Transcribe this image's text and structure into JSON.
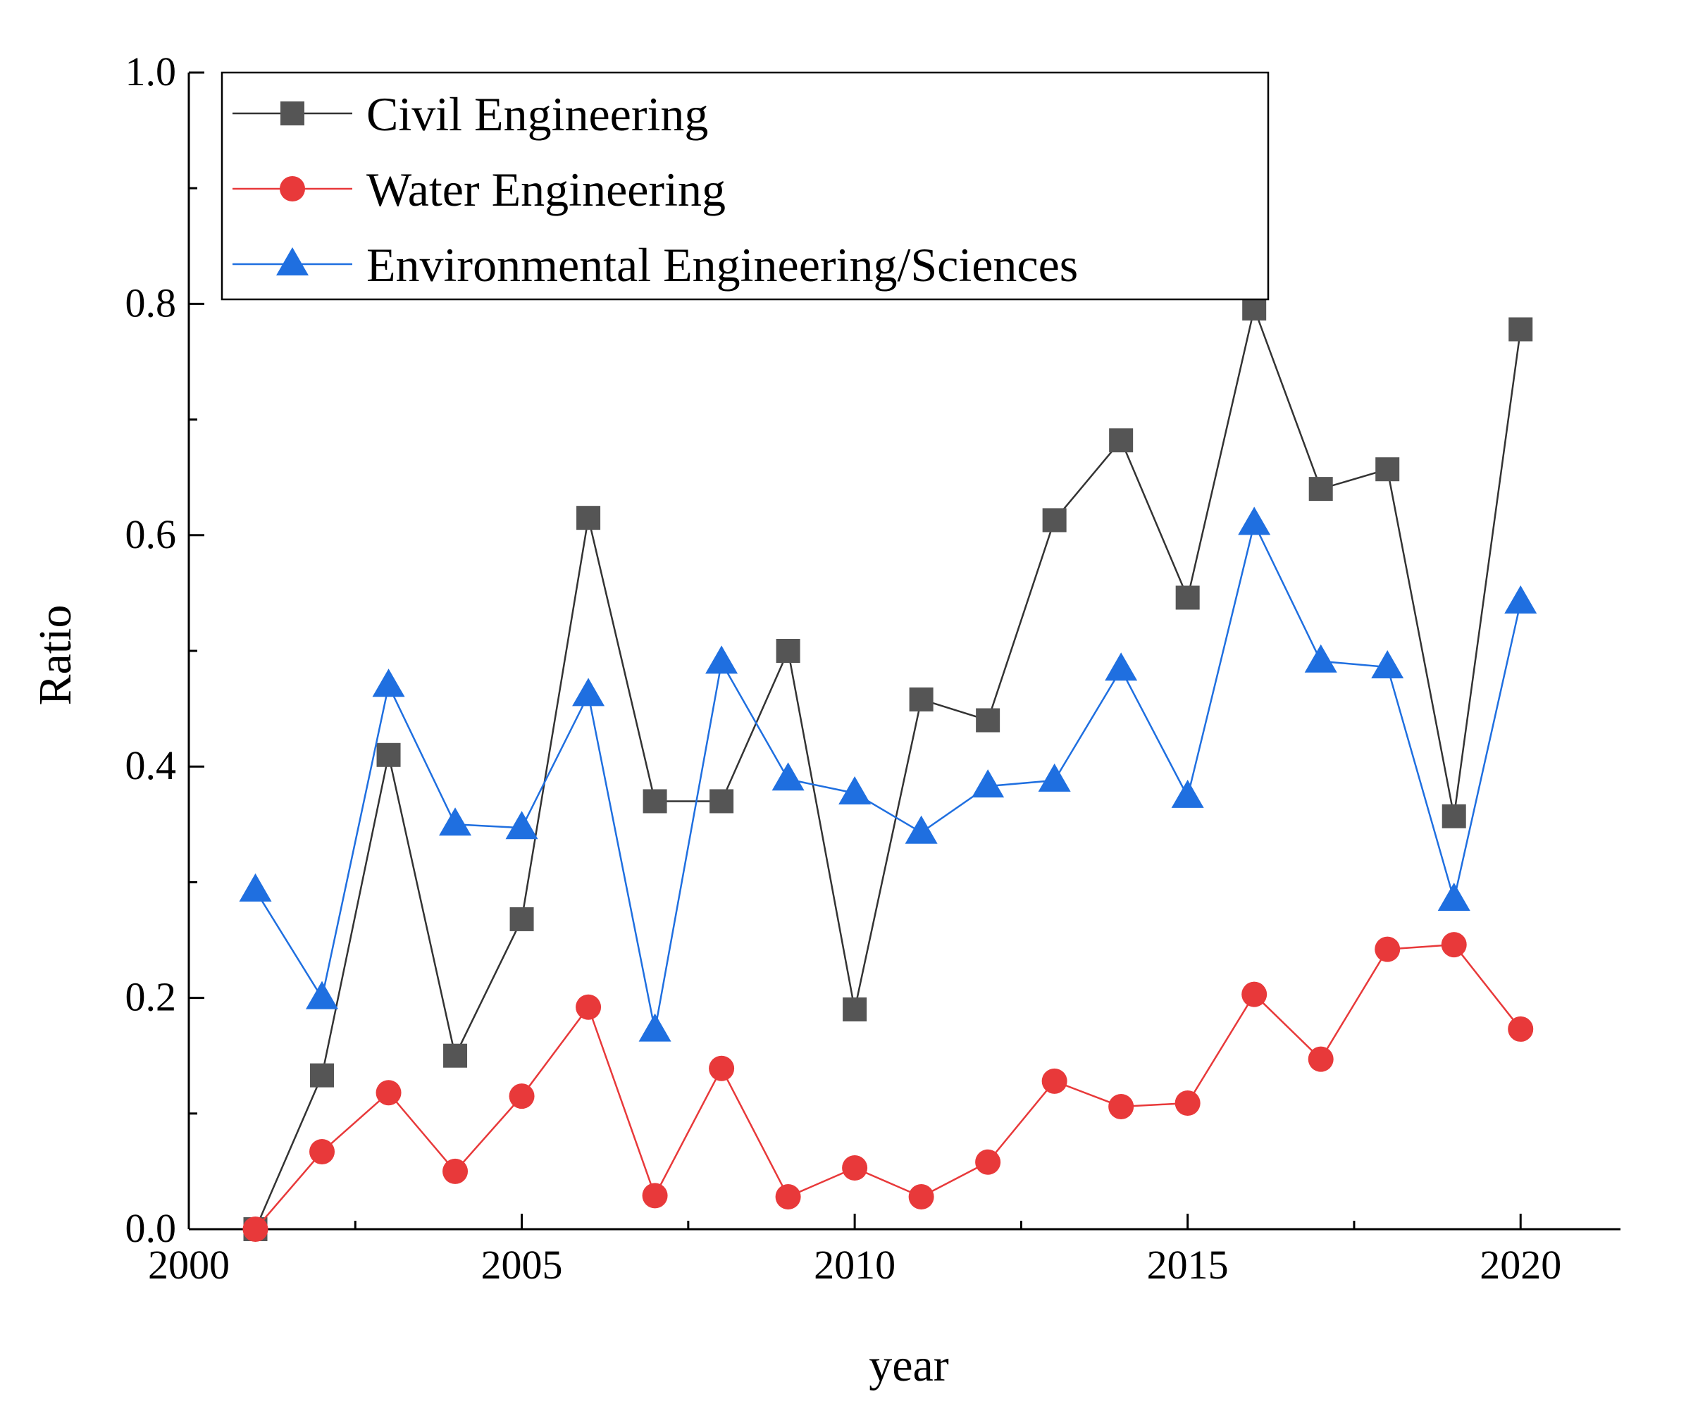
{
  "chart_data": {
    "type": "line",
    "title": "",
    "xlabel": "year",
    "ylabel": "Ratio",
    "xlim": [
      2000,
      2021.5
    ],
    "ylim": [
      0.0,
      1.0
    ],
    "x_ticks": [
      2000,
      2005,
      2010,
      2015,
      2020
    ],
    "y_ticks": [
      0.0,
      0.2,
      0.4,
      0.6,
      0.8,
      1.0
    ],
    "x_tick_labels": [
      "2000",
      "2005",
      "2010",
      "2015",
      "2020"
    ],
    "y_tick_labels": [
      "0.0",
      "0.2",
      "0.4",
      "0.6",
      "0.8",
      "1.0"
    ],
    "grid": false,
    "legend_position": "top-left",
    "x": [
      2001,
      2002,
      2003,
      2004,
      2005,
      2006,
      2007,
      2008,
      2009,
      2010,
      2011,
      2012,
      2013,
      2014,
      2015,
      2016,
      2017,
      2018,
      2019,
      2020
    ],
    "series": [
      {
        "name": "Civil Engineering",
        "color": "#555555",
        "line_color": "#333333",
        "marker": "square",
        "values": [
          0.0,
          0.133,
          0.41,
          0.15,
          0.268,
          0.615,
          0.37,
          0.37,
          0.5,
          0.19,
          0.458,
          0.44,
          0.613,
          0.682,
          0.546,
          0.796,
          0.64,
          0.657,
          0.357,
          0.778
        ]
      },
      {
        "name": "Water Engineering",
        "color": "#e8393a",
        "line_color": "#e8393a",
        "marker": "circle",
        "values": [
          0.0,
          0.067,
          0.118,
          0.05,
          0.115,
          0.192,
          0.029,
          0.139,
          0.028,
          0.053,
          0.028,
          0.058,
          0.128,
          0.106,
          0.109,
          0.203,
          0.147,
          0.242,
          0.246,
          0.173
        ]
      },
      {
        "name": "Environmental Engineering/Sciences",
        "color": "#1f6fe0",
        "line_color": "#1f6fe0",
        "marker": "triangle",
        "values": [
          0.293,
          0.2,
          0.47,
          0.35,
          0.347,
          0.462,
          0.172,
          0.49,
          0.389,
          0.377,
          0.343,
          0.383,
          0.388,
          0.484,
          0.374,
          0.61,
          0.491,
          0.486,
          0.285,
          0.542
        ]
      }
    ]
  }
}
